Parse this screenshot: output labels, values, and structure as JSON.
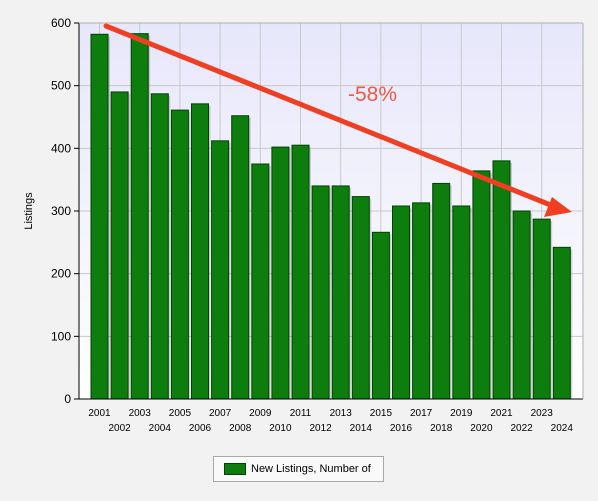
{
  "chart_data": {
    "type": "bar",
    "categories": [
      "2001",
      "2002",
      "2003",
      "2004",
      "2005",
      "2006",
      "2007",
      "2008",
      "2009",
      "2010",
      "2011",
      "2012",
      "2013",
      "2014",
      "2015",
      "2016",
      "2017",
      "2018",
      "2019",
      "2020",
      "2021",
      "2022",
      "2023",
      "2024"
    ],
    "series": [
      {
        "name": "New Listings, Number of",
        "values": [
          582,
          490,
          583,
          487,
          461,
          471,
          412,
          452,
          375,
          402,
          405,
          340,
          340,
          323,
          266,
          308,
          313,
          344,
          308,
          364,
          380,
          300,
          287,
          242
        ]
      }
    ],
    "ylabel": "Listings",
    "xlabel": "",
    "ylim": [
      0,
      600
    ],
    "yticks": [
      0,
      100,
      200,
      300,
      400,
      500,
      600
    ],
    "grid": true,
    "legend_position": "bottom-center",
    "annotation": {
      "text": "-58%"
    },
    "colors": {
      "bar": "#0d7d0d",
      "bar_border": "#064006",
      "plot_bg_top": "#e7e7fb",
      "plot_bg_bottom": "#ffffff",
      "arrow": "#f03e23",
      "annotation": "#ee5a44"
    }
  }
}
